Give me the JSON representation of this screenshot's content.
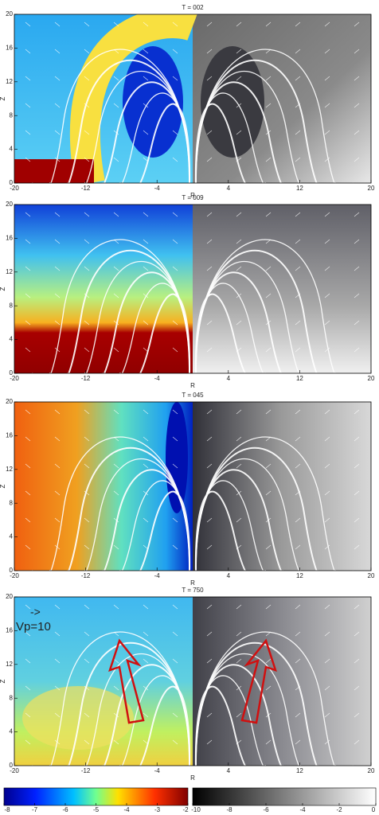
{
  "chart_data": [
    {
      "type": "field",
      "title": "T = 002",
      "x_label": "R",
      "y_label": "Z",
      "xlim": [
        -20,
        20
      ],
      "ylim": [
        0,
        20
      ],
      "xticks": [
        -20,
        -12,
        -4,
        4,
        12,
        20
      ],
      "yticks": [
        0,
        4,
        8,
        12,
        16,
        20
      ]
    },
    {
      "type": "field",
      "title": "T = 009",
      "x_label": "R",
      "y_label": "Z",
      "xlim": [
        -20,
        20
      ],
      "ylim": [
        0,
        20
      ],
      "xticks": [
        -20,
        -12,
        -4,
        4,
        12,
        20
      ],
      "yticks": [
        0,
        4,
        8,
        12,
        16,
        20
      ]
    },
    {
      "type": "field",
      "title": "T = 045",
      "x_label": "R",
      "y_label": "Z",
      "xlim": [
        -20,
        20
      ],
      "ylim": [
        0,
        20
      ],
      "xticks": [
        -20,
        -12,
        -4,
        4,
        12,
        20
      ],
      "yticks": [
        0,
        4,
        8,
        12,
        16,
        20
      ]
    },
    {
      "type": "field",
      "title": "T = 750",
      "x_label": "R",
      "y_label": "Z",
      "xlim": [
        -20,
        20
      ],
      "ylim": [
        0,
        20
      ],
      "xticks": [
        -20,
        -12,
        -4,
        4,
        12,
        20
      ],
      "yticks": [
        0,
        4,
        8,
        12,
        16,
        20
      ],
      "annotations": [
        "->",
        "Vp=10"
      ]
    }
  ],
  "colorbars": [
    {
      "lim": [
        -8,
        -2
      ],
      "ticks": [
        -8,
        -7,
        -6,
        -5,
        -4,
        -3,
        -2
      ]
    },
    {
      "lim": [
        -10,
        0
      ],
      "ticks": [
        -10,
        -8,
        -6,
        -4,
        -2,
        0
      ]
    }
  ]
}
